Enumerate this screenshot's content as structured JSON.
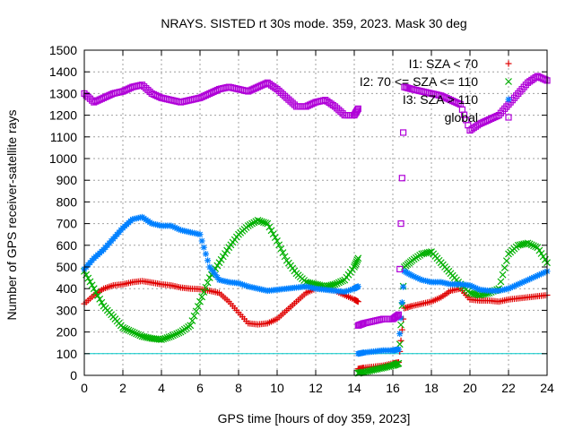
{
  "chart_data": {
    "type": "scatter",
    "title": "NRAYS. SISTED rt 30s mode. 359, 2023. Mask 30 deg",
    "xlabel": "GPS time [hours of doy 359, 2023]",
    "ylabel": "Number of GPS receiver-satellite rays",
    "xlim": [
      0,
      24
    ],
    "ylim": [
      0,
      1500
    ],
    "xticks": [
      "0",
      "2",
      "4",
      "6",
      "8",
      "10",
      "12",
      "14",
      "16",
      "18",
      "20",
      "22",
      "24"
    ],
    "yticks": [
      "0",
      "100",
      "200",
      "300",
      "400",
      "500",
      "600",
      "700",
      "800",
      "900",
      "1000",
      "1100",
      "1200",
      "1300",
      "1400",
      "1500"
    ],
    "grid": true,
    "legend_position": "top-right",
    "reference_line": {
      "y": 100,
      "color": "#00c8c8"
    },
    "series": [
      {
        "name": "I1: SZA < 70",
        "marker": "+",
        "color": "#e00000",
        "x": [
          0,
          0.5,
          1,
          1.5,
          2,
          2.5,
          3,
          3.5,
          4,
          4.5,
          5,
          5.5,
          6,
          6.5,
          7,
          7.5,
          8,
          8.5,
          9,
          9.5,
          10,
          10.5,
          11,
          11.5,
          12,
          12.5,
          13,
          13.5,
          14,
          14.2,
          14.2,
          14.5,
          15,
          15.5,
          16,
          16.3,
          16.6,
          17,
          17.5,
          18,
          18.5,
          19,
          19.5,
          20,
          20.5,
          21,
          21.5,
          22,
          22.5,
          23,
          23.5,
          24
        ],
        "y": [
          330,
          370,
          400,
          415,
          420,
          430,
          435,
          428,
          420,
          415,
          405,
          400,
          398,
          390,
          380,
          340,
          290,
          240,
          235,
          240,
          260,
          300,
          340,
          380,
          400,
          400,
          390,
          370,
          350,
          340,
          30,
          35,
          40,
          45,
          55,
          60,
          310,
          320,
          330,
          340,
          360,
          390,
          400,
          350,
          345,
          345,
          340,
          350,
          355,
          360,
          365,
          370
        ]
      },
      {
        "name": "I2: 70 <= SZA <= 110",
        "marker": "x",
        "color": "#00b000",
        "x": [
          0,
          0.5,
          1,
          1.5,
          2,
          2.5,
          3,
          3.5,
          4,
          4.5,
          5,
          5.5,
          6,
          6.5,
          7,
          7.5,
          8,
          8.5,
          9,
          9.5,
          10,
          10.5,
          11,
          11.5,
          12,
          12.5,
          13,
          13.5,
          14,
          14.2,
          14.2,
          14.5,
          15,
          15.5,
          16,
          16.3,
          16.6,
          17,
          17.5,
          18,
          18.5,
          19,
          19.5,
          20,
          20.5,
          21,
          21.5,
          22,
          22.5,
          23,
          23.5,
          24
        ],
        "y": [
          480,
          400,
          320,
          270,
          220,
          200,
          180,
          170,
          165,
          180,
          200,
          230,
          340,
          450,
          520,
          590,
          650,
          690,
          715,
          700,
          620,
          530,
          470,
          430,
          420,
          410,
          420,
          440,
          500,
          540,
          10,
          15,
          25,
          35,
          45,
          55,
          500,
          530,
          560,
          570,
          520,
          470,
          420,
          380,
          370,
          380,
          400,
          560,
          600,
          610,
          590,
          520
        ]
      },
      {
        "name": "I3: SZA > 110",
        "marker": "*",
        "color": "#0080ff",
        "x": [
          0,
          0.5,
          1,
          1.5,
          2,
          2.5,
          3,
          3.5,
          4,
          4.5,
          5,
          5.5,
          6,
          6.5,
          7,
          7.5,
          8,
          8.5,
          9,
          9.5,
          10,
          10.5,
          11,
          11.5,
          12,
          12.5,
          13,
          13.5,
          14,
          14.2,
          14.2,
          14.5,
          15,
          15.5,
          16,
          16.3,
          16.6,
          17,
          17.5,
          18,
          18.5,
          19,
          19.5,
          20,
          20.5,
          21,
          21.5,
          22,
          22.5,
          23,
          23.5,
          24
        ],
        "y": [
          490,
          540,
          580,
          630,
          680,
          720,
          730,
          700,
          690,
          690,
          670,
          660,
          650,
          500,
          440,
          430,
          425,
          410,
          400,
          390,
          395,
          400,
          405,
          410,
          400,
          395,
          390,
          385,
          400,
          410,
          100,
          105,
          110,
          115,
          115,
          120,
          480,
          460,
          440,
          430,
          430,
          420,
          420,
          415,
          395,
          390,
          390,
          400,
          420,
          440,
          460,
          480
        ]
      },
      {
        "name": "global",
        "marker": "square",
        "color": "#b000d8",
        "x": [
          0,
          0.5,
          1,
          1.5,
          2,
          2.5,
          3,
          3.5,
          4,
          4.5,
          5,
          5.5,
          6,
          6.5,
          7,
          7.5,
          8,
          8.5,
          9,
          9.5,
          10,
          10.5,
          11,
          11.5,
          12,
          12.5,
          13,
          13.5,
          14,
          14.2,
          14.2,
          14.5,
          15,
          15.5,
          16,
          16.3,
          16.6,
          17,
          17.5,
          18,
          18.5,
          19,
          19.5,
          20,
          20.5,
          21,
          21.5,
          22,
          22.5,
          23,
          23.5,
          24
        ],
        "y": [
          1300,
          1260,
          1280,
          1300,
          1310,
          1330,
          1340,
          1300,
          1280,
          1270,
          1260,
          1270,
          1280,
          1300,
          1320,
          1330,
          1320,
          1310,
          1330,
          1350,
          1320,
          1280,
          1240,
          1240,
          1260,
          1270,
          1240,
          1200,
          1200,
          1230,
          230,
          240,
          250,
          260,
          260,
          280,
          1330,
          1320,
          1310,
          1300,
          1290,
          1270,
          1250,
          1130,
          1160,
          1180,
          1200,
          1250,
          1300,
          1350,
          1380,
          1360
        ]
      }
    ]
  }
}
